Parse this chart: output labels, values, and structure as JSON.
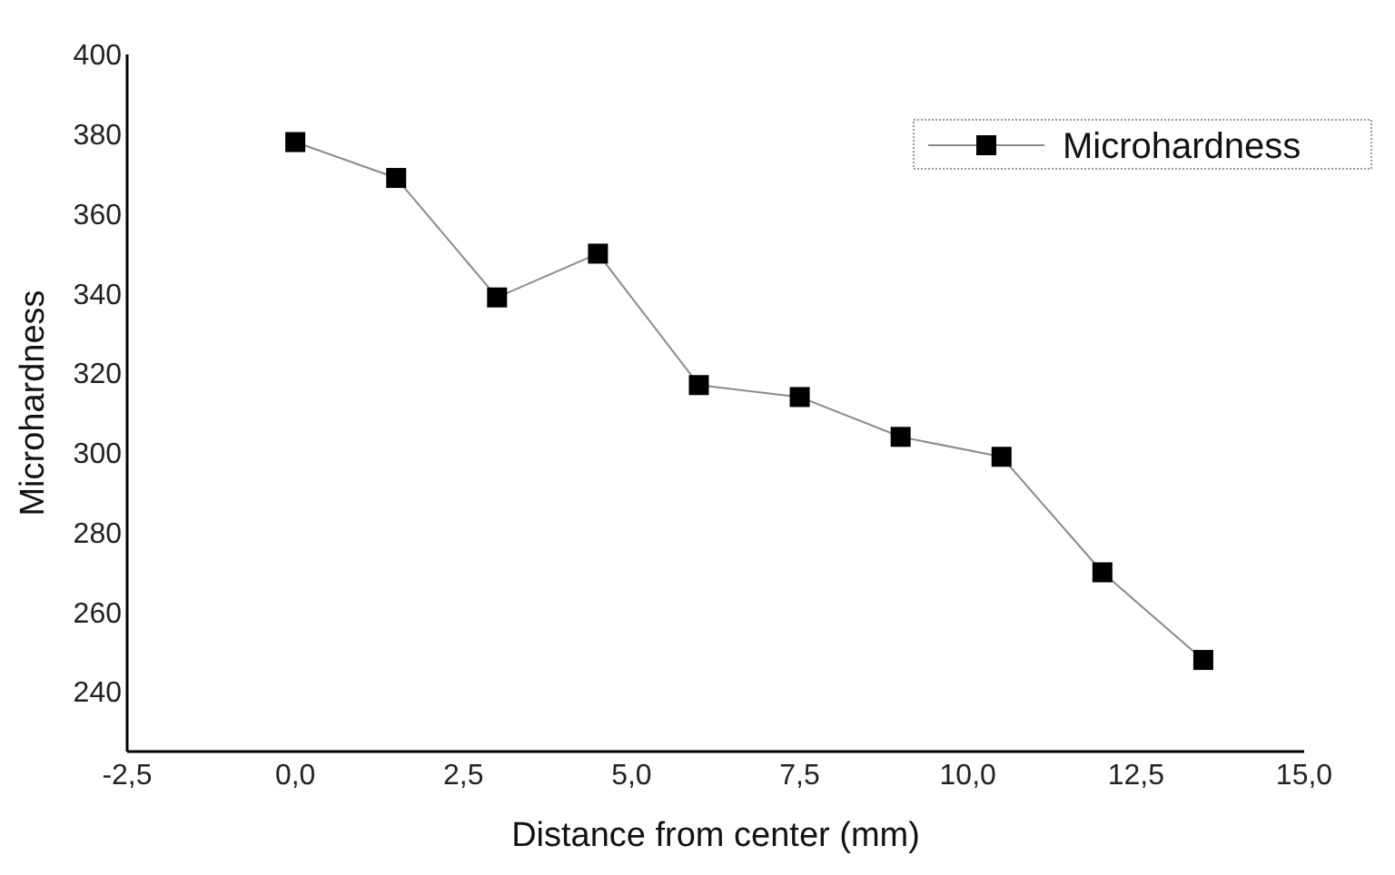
{
  "chart_data": {
    "type": "line",
    "xlabel": "Distance from center (mm)",
    "ylabel": "Microhardness",
    "x": [
      0,
      1.5,
      3,
      4.5,
      6,
      7.5,
      9,
      10.5,
      12,
      13.5
    ],
    "series": [
      {
        "name": "Microhardness",
        "color": "#000000",
        "values": [
          378,
          369,
          339,
          350,
          317,
          314,
          304,
          299,
          270,
          248
        ]
      }
    ],
    "xlim": [
      -2.5,
      15
    ],
    "xticks": [
      {
        "value": -2.5,
        "label": "-2,5"
      },
      {
        "value": 0,
        "label": "0,0"
      },
      {
        "value": 2.5,
        "label": "2,5"
      },
      {
        "value": 5,
        "label": "5,0"
      },
      {
        "value": 7.5,
        "label": "7,5"
      },
      {
        "value": 10,
        "label": "10,0"
      },
      {
        "value": 12.5,
        "label": "12,5"
      },
      {
        "value": 15,
        "label": "15,0"
      }
    ],
    "ylim": [
      225,
      400
    ],
    "yticks": [
      240,
      260,
      280,
      300,
      320,
      340,
      360,
      380,
      400
    ],
    "marker": "square",
    "line_style": "solid",
    "legend": "top right",
    "grid": false
  }
}
